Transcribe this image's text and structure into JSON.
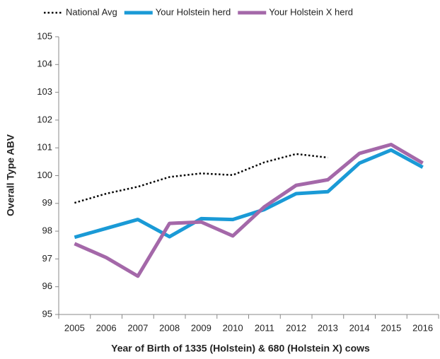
{
  "chart_data": {
    "type": "line",
    "x_label": "Year of Birth of 1335 (Holstein) & 680 (Holstein X) cows",
    "y_label": "Overall Type ABV",
    "categories": [
      "2005",
      "2006",
      "2007",
      "2008",
      "2009",
      "2010",
      "2011",
      "2012",
      "2013",
      "2014",
      "2015",
      "2016"
    ],
    "series": [
      {
        "name": "National Avg",
        "color": "#000000",
        "dashed": true,
        "values": [
          99.02,
          99.35,
          99.6,
          99.95,
          100.08,
          100.02,
          100.48,
          100.78,
          100.65,
          null,
          null,
          null
        ]
      },
      {
        "name": "Your Holstein herd",
        "color": "#1a9ad6",
        "values": [
          97.78,
          98.1,
          98.42,
          97.8,
          98.45,
          98.42,
          98.78,
          99.35,
          99.42,
          100.45,
          100.92,
          100.3
        ]
      },
      {
        "name": "Your Holstein X herd",
        "color": "#a468a9",
        "values": [
          97.55,
          97.05,
          96.38,
          98.28,
          98.33,
          97.83,
          98.88,
          99.65,
          99.85,
          100.8,
          101.12,
          100.45
        ]
      }
    ],
    "ylim": [
      95,
      105
    ],
    "yticks": [
      95,
      96,
      97,
      98,
      99,
      100,
      101,
      102,
      103,
      104,
      105
    ],
    "legend": "top",
    "grid": false
  }
}
